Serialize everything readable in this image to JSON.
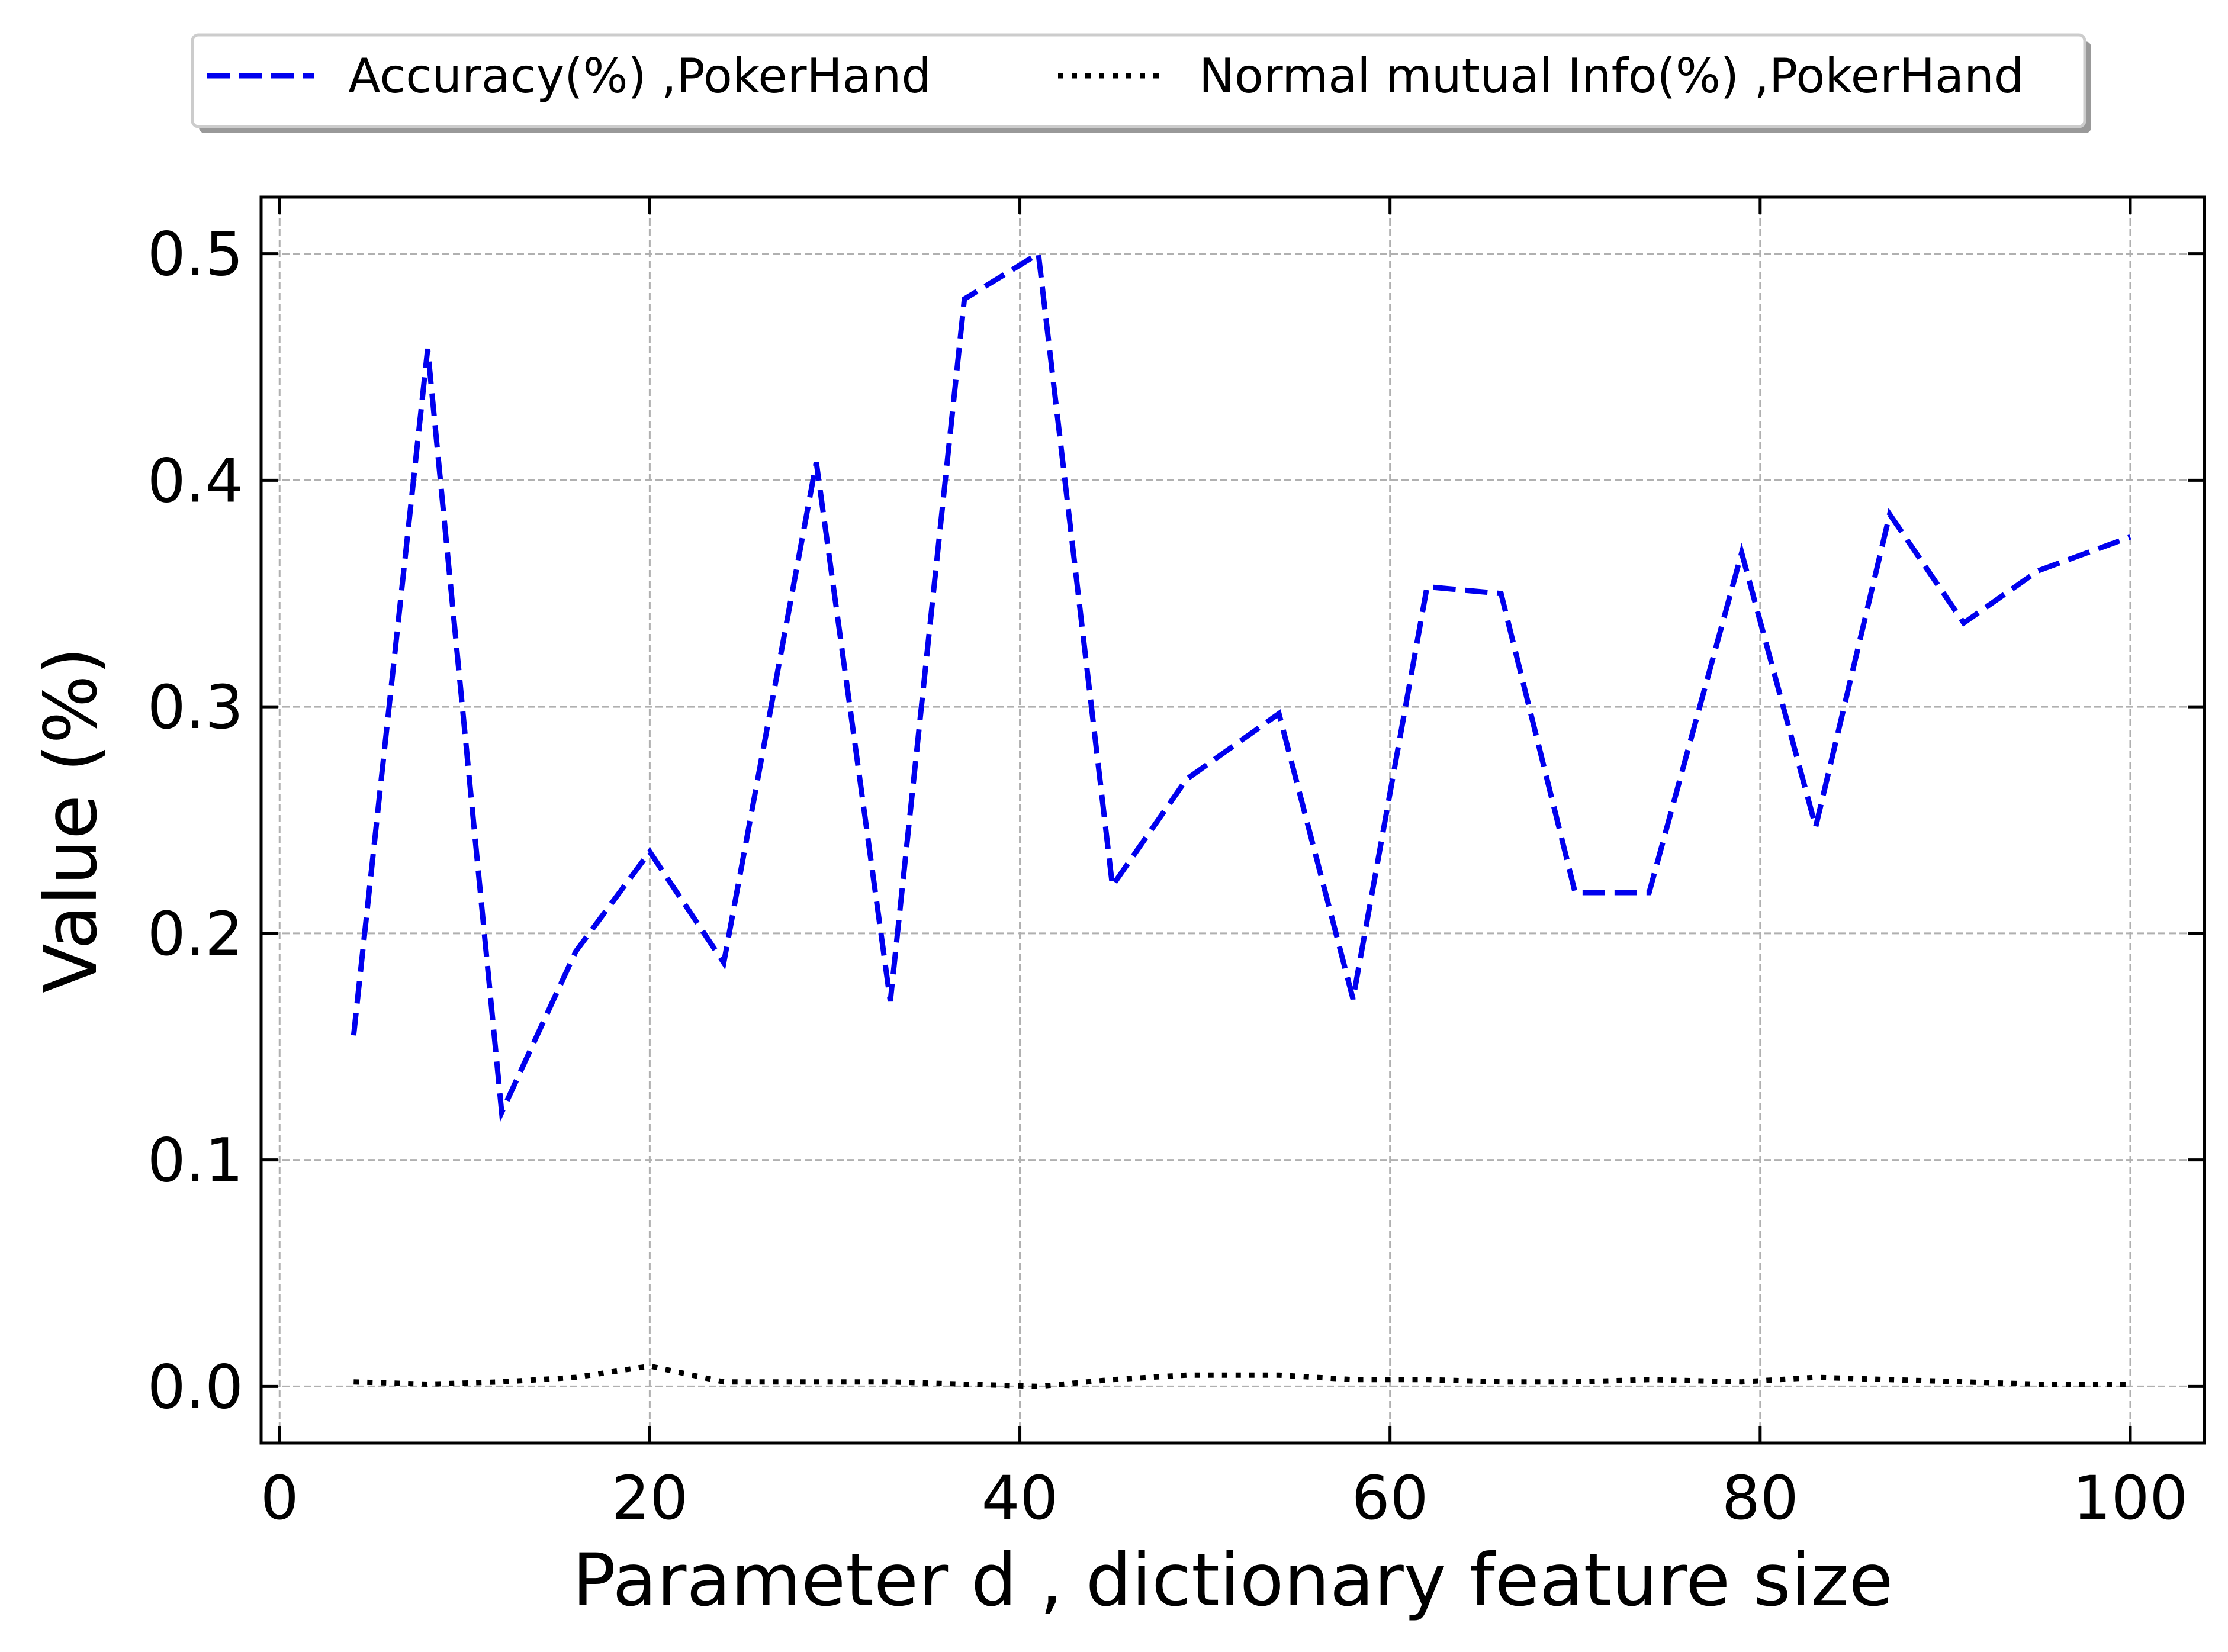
{
  "chart_data": {
    "type": "line",
    "xlabel": "Parameter d , dictionary feature size",
    "ylabel": "Value (%)",
    "xlim": [
      -1,
      104
    ],
    "ylim": [
      -0.025,
      0.525
    ],
    "xticks": [
      0,
      20,
      40,
      60,
      80,
      100
    ],
    "yticks": [
      0.0,
      0.1,
      0.2,
      0.3,
      0.4,
      0.5
    ],
    "xtick_labels": [
      "0",
      "20",
      "40",
      "60",
      "80",
      "100"
    ],
    "ytick_labels": [
      "0.0",
      "0.1",
      "0.2",
      "0.3",
      "0.4",
      "0.5"
    ],
    "grid": true,
    "legend_placement": "top, outside plot area, two columns, with shadow",
    "series": [
      {
        "name": "Accuracy(%) ,PokerHand",
        "color": "#0000ee",
        "style": "dashed",
        "x": [
          4,
          8,
          12,
          16,
          20,
          24,
          29,
          33,
          37,
          41,
          45,
          49,
          54,
          58,
          62,
          66,
          70,
          74,
          79,
          83,
          87,
          91,
          95,
          100
        ],
        "y": [
          0.155,
          0.458,
          0.121,
          0.192,
          0.236,
          0.187,
          0.408,
          0.17,
          0.48,
          0.5,
          0.221,
          0.268,
          0.297,
          0.171,
          0.353,
          0.35,
          0.218,
          0.218,
          0.368,
          0.247,
          0.385,
          0.337,
          0.36,
          0.375
        ]
      },
      {
        "name": "Normal mutual Info(%) ,PokerHand",
        "color": "#000000",
        "style": "dotted",
        "x": [
          4,
          8,
          12,
          16,
          20,
          24,
          29,
          33,
          37,
          41,
          45,
          49,
          54,
          58,
          62,
          66,
          70,
          74,
          79,
          83,
          87,
          91,
          95,
          100
        ],
        "y": [
          0.002,
          0.001,
          0.002,
          0.004,
          0.009,
          0.002,
          0.002,
          0.002,
          0.001,
          0.0,
          0.003,
          0.005,
          0.005,
          0.003,
          0.003,
          0.002,
          0.002,
          0.003,
          0.002,
          0.004,
          0.003,
          0.002,
          0.001,
          0.001
        ]
      }
    ]
  }
}
